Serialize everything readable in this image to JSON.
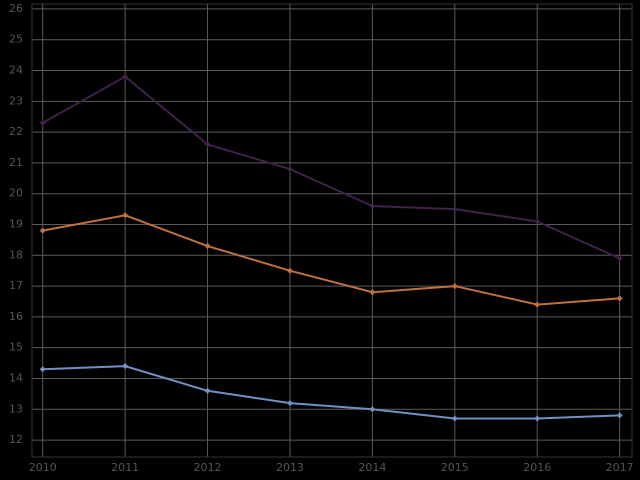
{
  "chart_data": {
    "type": "line",
    "x": [
      2010,
      2011,
      2012,
      2013,
      2014,
      2015,
      2016,
      2017
    ],
    "series": [
      {
        "color": "#3f2149",
        "values": [
          22.3,
          23.8,
          21.6,
          20.8,
          19.6,
          19.5,
          19.1,
          17.9
        ]
      },
      {
        "color": "#c0703e",
        "values": [
          18.8,
          19.3,
          18.3,
          17.5,
          16.8,
          17.0,
          16.4,
          16.6
        ]
      },
      {
        "color": "#7091c4",
        "values": [
          14.3,
          14.4,
          13.6,
          13.2,
          13.0,
          12.7,
          12.7,
          12.8
        ]
      }
    ],
    "xlim": [
      2009.87,
      2017.15
    ],
    "xticks": [
      2010,
      2011,
      2012,
      2013,
      2014,
      2015,
      2016,
      2017
    ],
    "ylim": [
      11.45,
      26.16
    ],
    "yticks": [
      12,
      13,
      14,
      15,
      16,
      17,
      18,
      19,
      20,
      21,
      22,
      23,
      24,
      25,
      26
    ],
    "grid": true
  }
}
